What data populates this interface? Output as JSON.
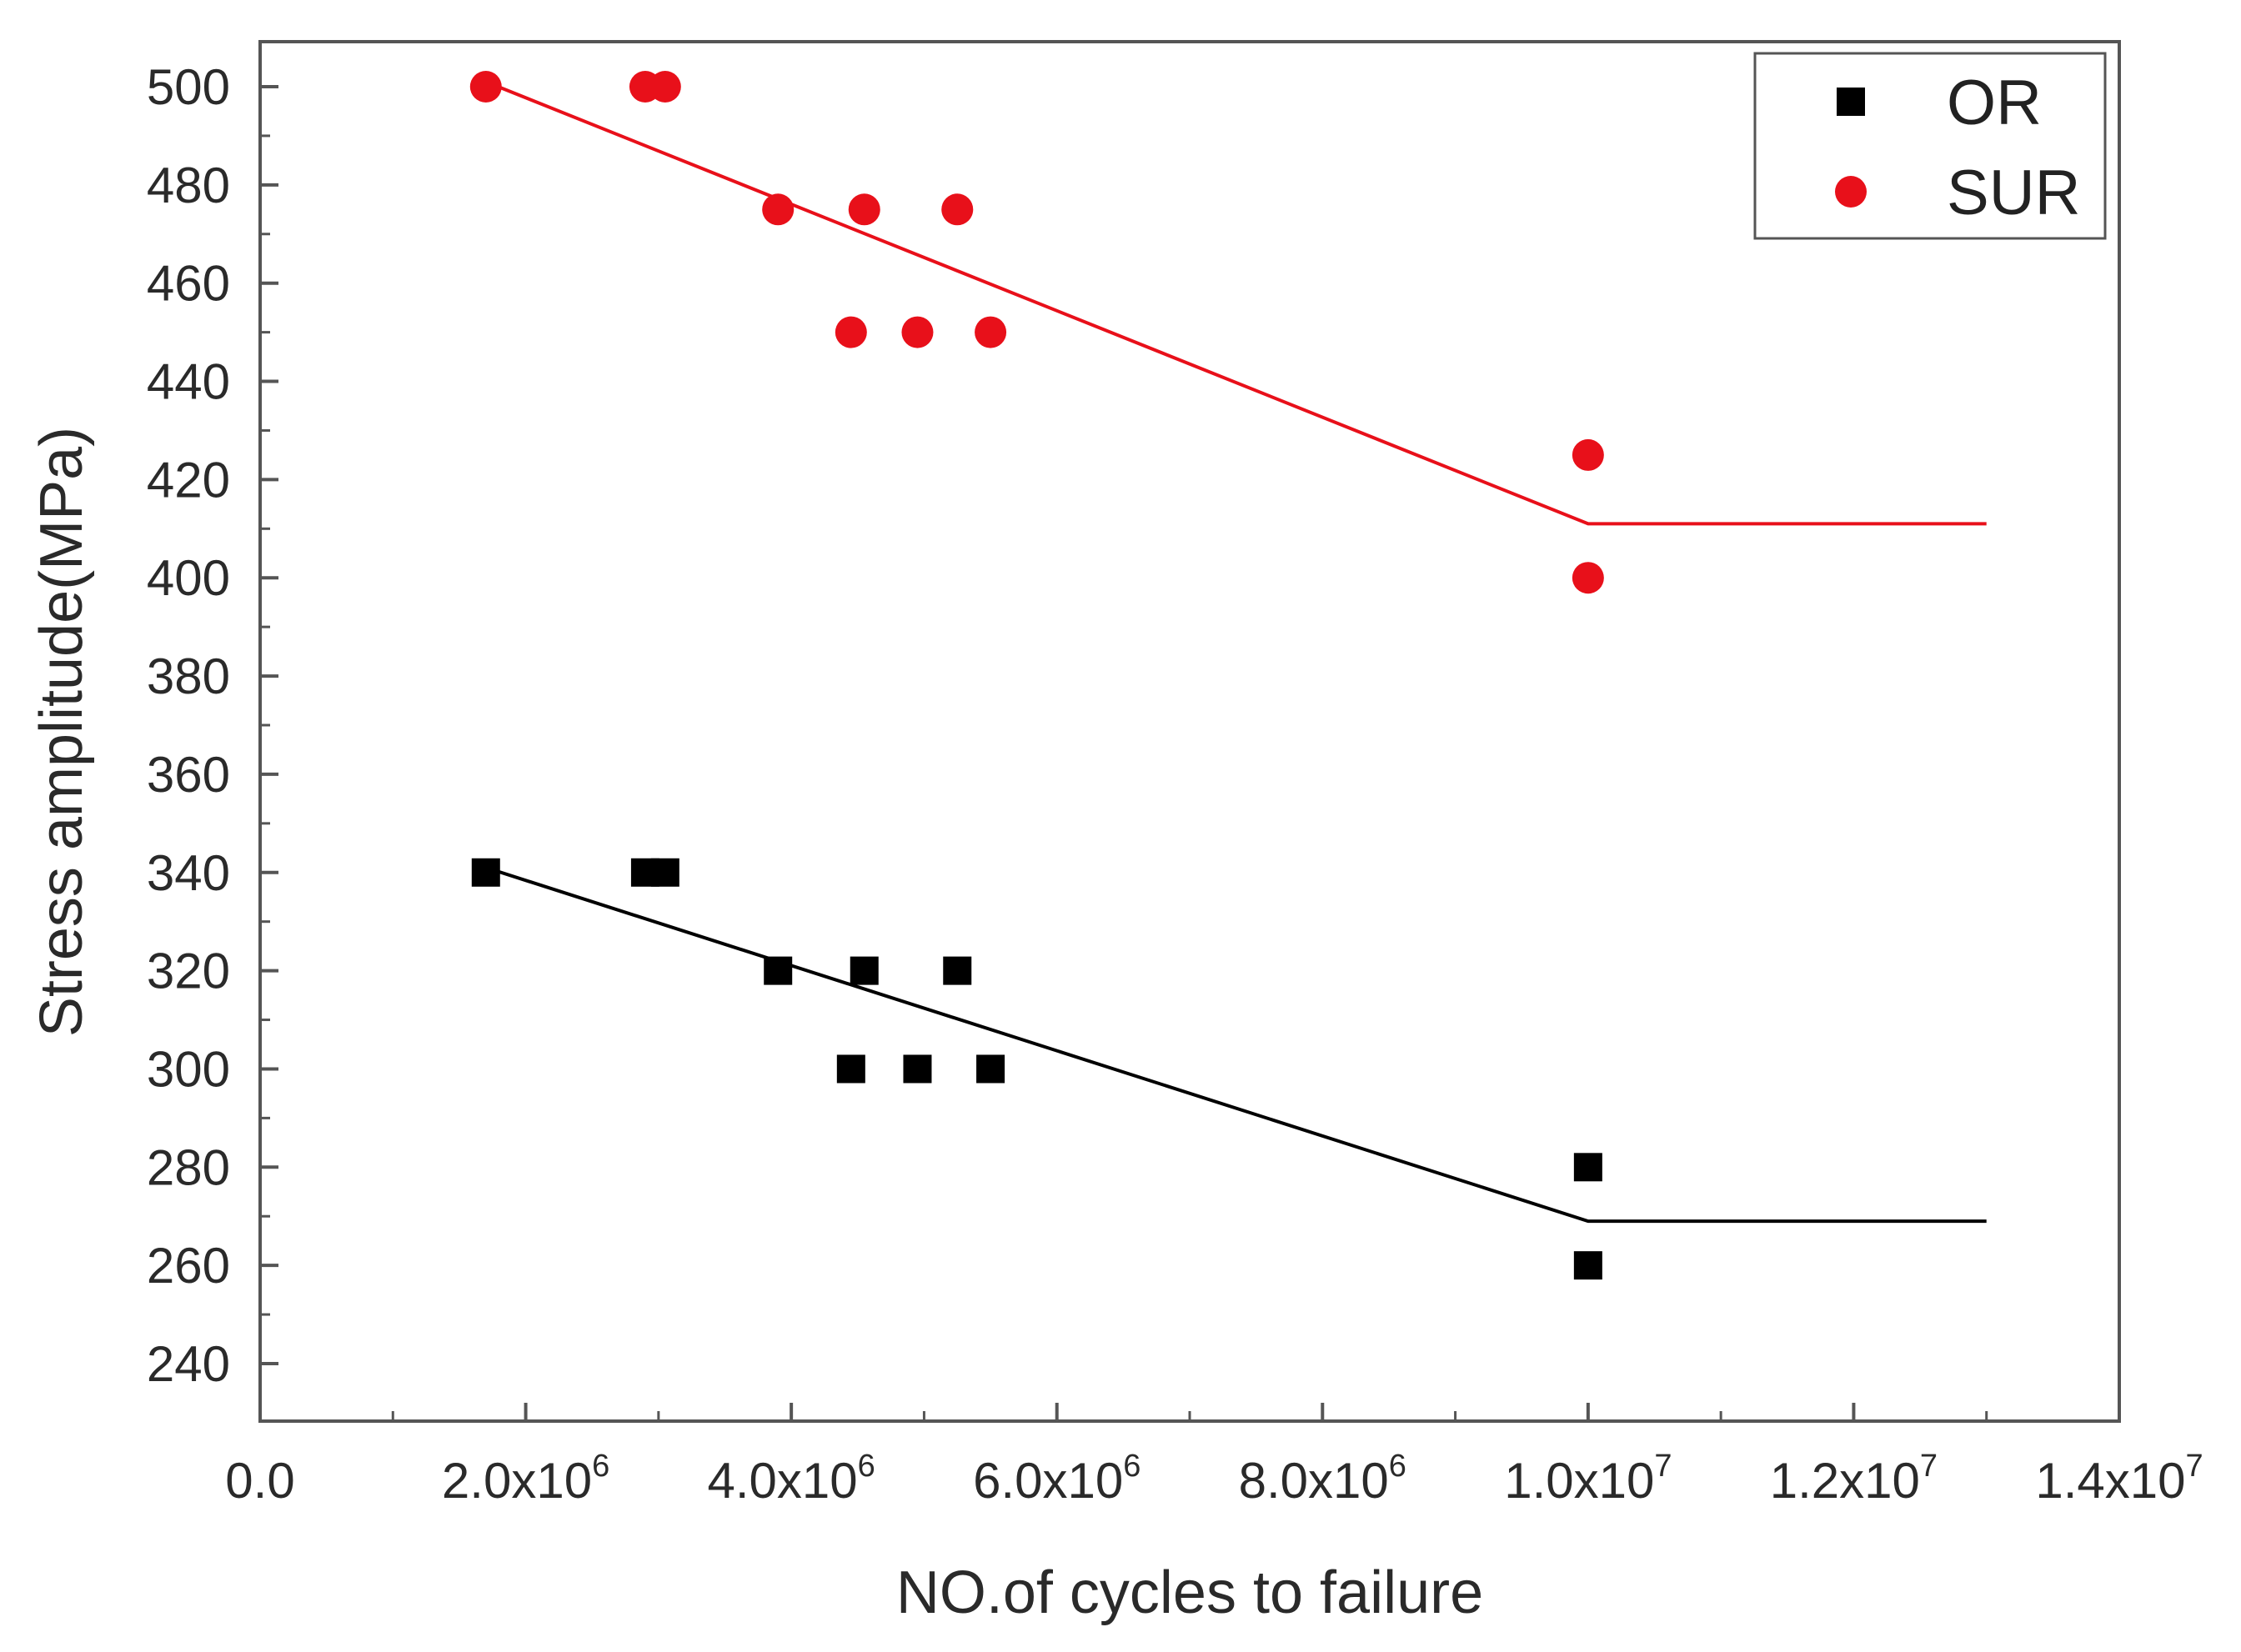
{
  "chart_data": {
    "type": "scatter",
    "title": "",
    "xlabel": "NO.of cycles to failure",
    "ylabel": "Stress amplitude(MPa)",
    "xlim": [
      0,
      14000000
    ],
    "ylim": [
      230,
      505
    ],
    "grid": false,
    "legend_position": "top-right",
    "x_ticks": [
      {
        "value": 0,
        "mantissa": "0.0",
        "exponent": ""
      },
      {
        "value": 2000000,
        "mantissa": "2.0x10",
        "exponent": "6"
      },
      {
        "value": 4000000,
        "mantissa": "4.0x10",
        "exponent": "6"
      },
      {
        "value": 6000000,
        "mantissa": "6.0x10",
        "exponent": "6"
      },
      {
        "value": 8000000,
        "mantissa": "8.0x10",
        "exponent": "6"
      },
      {
        "value": 10000000,
        "mantissa": "1.0x10",
        "exponent": "7"
      },
      {
        "value": 12000000,
        "mantissa": "1.2x10",
        "exponent": "7"
      },
      {
        "value": 14000000,
        "mantissa": "1.4x10",
        "exponent": "7"
      }
    ],
    "y_ticks": [
      500,
      480,
      460,
      440,
      420,
      400,
      380,
      360,
      340,
      320,
      300,
      280,
      260,
      240
    ],
    "series": [
      {
        "name": "OR",
        "color": "#000000",
        "marker": "square",
        "points": [
          {
            "x": 1700000,
            "y": 340
          },
          {
            "x": 2900000,
            "y": 340
          },
          {
            "x": 3050000,
            "y": 340
          },
          {
            "x": 3900000,
            "y": 320
          },
          {
            "x": 4550000,
            "y": 320
          },
          {
            "x": 5250000,
            "y": 320
          },
          {
            "x": 4450000,
            "y": 300
          },
          {
            "x": 4950000,
            "y": 300
          },
          {
            "x": 5500000,
            "y": 300
          },
          {
            "x": 10000000,
            "y": 280
          },
          {
            "x": 10000000,
            "y": 260
          }
        ],
        "fit_line": [
          {
            "x": 1700000,
            "y": 341
          },
          {
            "x": 10000000,
            "y": 269
          },
          {
            "x": 13000000,
            "y": 269
          }
        ]
      },
      {
        "name": "SUR",
        "color": "#e8101a",
        "marker": "circle",
        "points": [
          {
            "x": 1700000,
            "y": 500
          },
          {
            "x": 2900000,
            "y": 500
          },
          {
            "x": 3050000,
            "y": 500
          },
          {
            "x": 3900000,
            "y": 475
          },
          {
            "x": 4550000,
            "y": 475
          },
          {
            "x": 5250000,
            "y": 475
          },
          {
            "x": 4450000,
            "y": 450
          },
          {
            "x": 4950000,
            "y": 450
          },
          {
            "x": 5500000,
            "y": 450
          },
          {
            "x": 10000000,
            "y": 425
          },
          {
            "x": 10000000,
            "y": 400
          }
        ],
        "fit_line": [
          {
            "x": 1700000,
            "y": 501
          },
          {
            "x": 10000000,
            "y": 411
          },
          {
            "x": 13000000,
            "y": 411
          }
        ]
      }
    ]
  }
}
